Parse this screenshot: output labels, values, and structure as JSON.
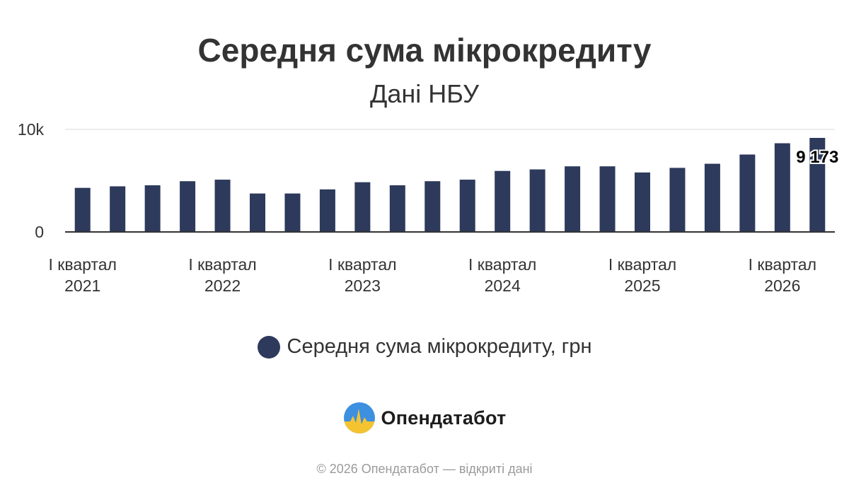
{
  "colors": {
    "bar": "#2d3a5c",
    "text": "#333333",
    "grid": "#e6e6e6",
    "footer": "#9a9a9a"
  },
  "chart_data": {
    "type": "bar",
    "title": "Середня сума мікрокредиту",
    "subtitle": "Дані НБУ",
    "ylim": [
      0,
      10000
    ],
    "y_ticks": [
      0,
      10000
    ],
    "y_tick_labels": [
      "0",
      "10k"
    ],
    "x_tick_labels": [
      {
        "index": 0,
        "lines": [
          "І квартал",
          "2021"
        ]
      },
      {
        "index": 4,
        "lines": [
          "І квартал",
          "2022"
        ]
      },
      {
        "index": 8,
        "lines": [
          "І квартал",
          "2023"
        ]
      },
      {
        "index": 12,
        "lines": [
          "І квартал",
          "2024"
        ]
      },
      {
        "index": 16,
        "lines": [
          "І квартал",
          "2025"
        ]
      },
      {
        "index": 20,
        "lines": [
          "І квартал",
          "2026"
        ]
      }
    ],
    "series": [
      {
        "name": "Середня сума мікрокредиту, грн",
        "values": [
          4300,
          4450,
          4550,
          4950,
          5100,
          3750,
          3750,
          4150,
          4850,
          4550,
          4950,
          5100,
          5950,
          6100,
          6400,
          6400,
          5800,
          6250,
          6650,
          7550,
          8650,
          9173
        ]
      }
    ],
    "data_labels": [
      {
        "index": 21,
        "text": "9 173"
      }
    ],
    "grid": true,
    "legend_position": "bottom"
  },
  "legend": {
    "label": "Середня сума мікрокредиту, грн"
  },
  "brand": {
    "name": "Опендатабот"
  },
  "footer": {
    "text": "© 2026 Опендатабот — відкриті дані"
  }
}
